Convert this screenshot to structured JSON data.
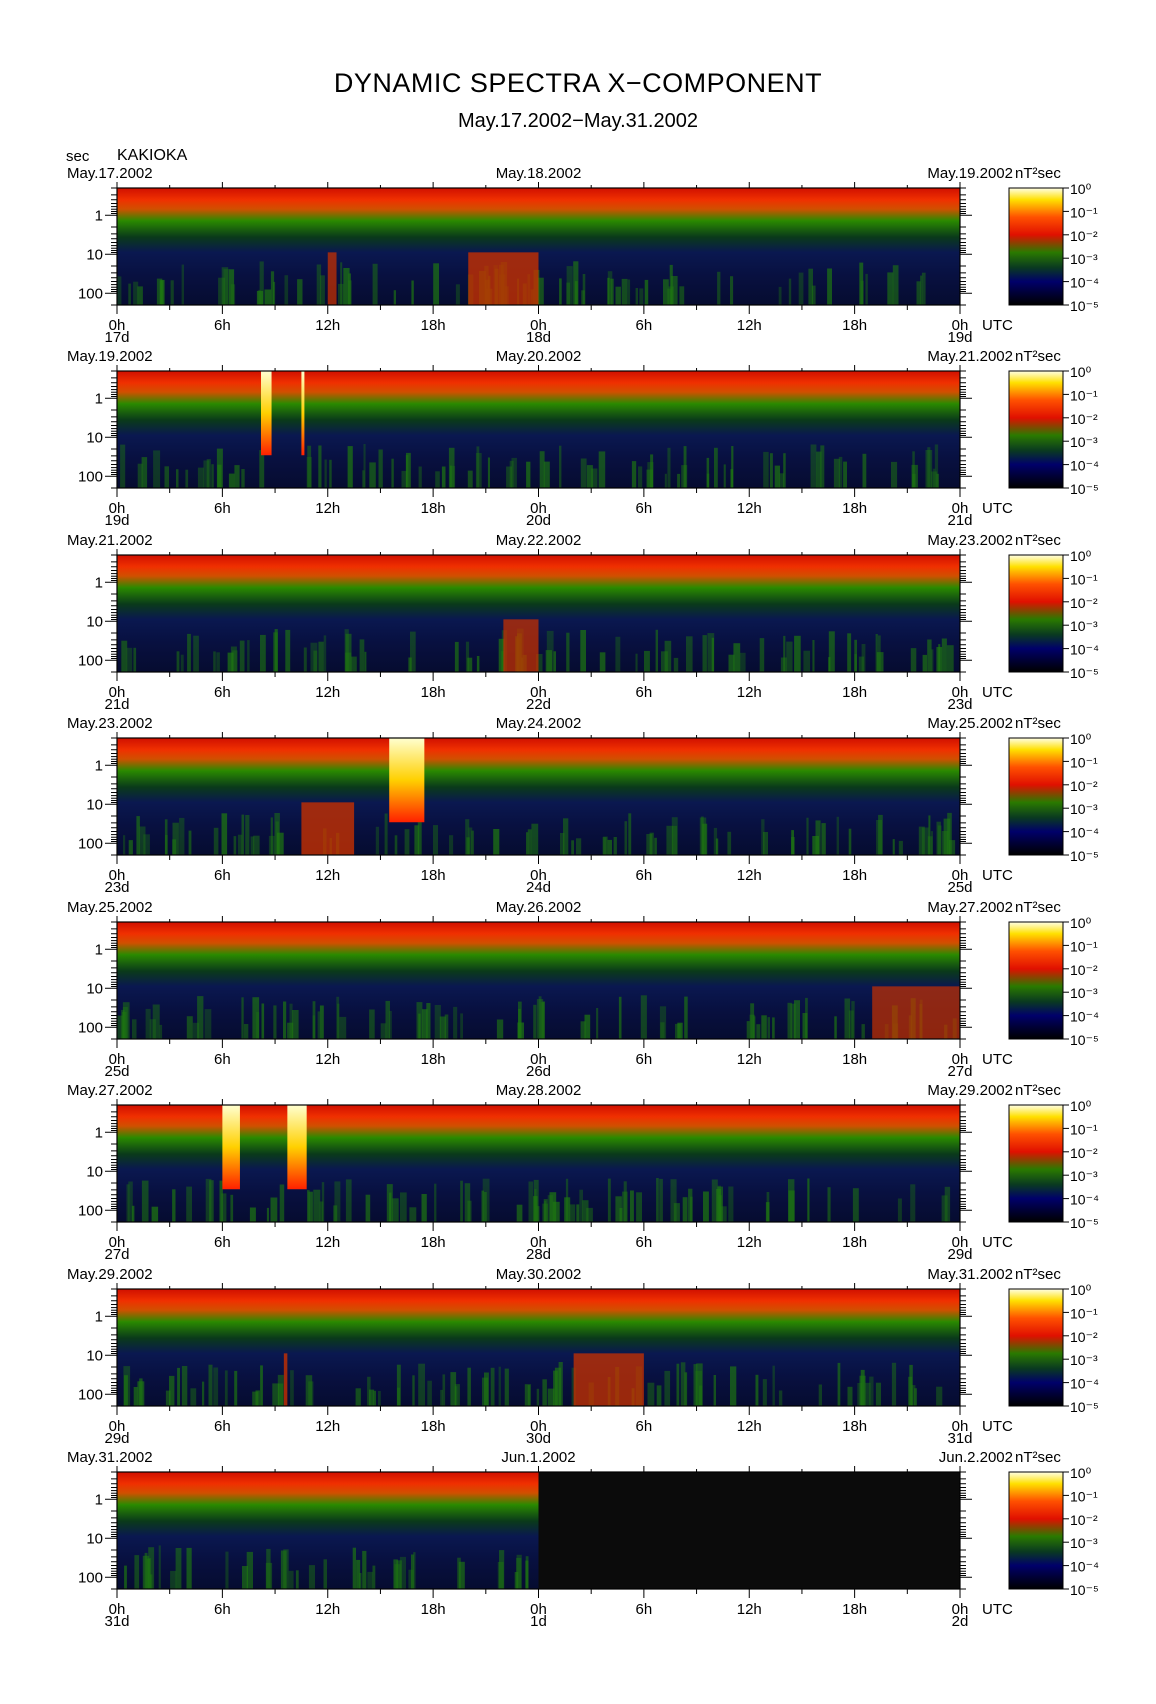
{
  "page": {
    "title": "DYNAMIC SPECTRA X−COMPONENT",
    "subtitle": "May.17.2002−May.31.2002",
    "unit_label": "sec",
    "station": "KAKIOKA"
  },
  "chart_data": {
    "type": "heatmap",
    "title": "DYNAMIC SPECTRA X−COMPONENT",
    "subtitle": "May.17.2002−May.31.2002",
    "station": "KAKIOKA",
    "ylabel": "sec",
    "yscale": "log",
    "ylim": [
      0.2,
      200
    ],
    "y_ticks": [
      "1",
      "10",
      "100"
    ],
    "x_ticks": [
      "0h",
      "6h",
      "12h",
      "18h",
      "0h",
      "6h",
      "12h",
      "18h",
      "0h"
    ],
    "x_unit": "UTC",
    "colorbar": {
      "unit_label": "nT²sec",
      "scale": "log",
      "ticks": [
        "10⁰",
        "10⁻¹",
        "10⁻²",
        "10⁻³",
        "10⁻⁴",
        "10⁻⁵"
      ],
      "colors": [
        "#ffffff",
        "#ffe000",
        "#ff3000",
        "#e01000",
        "#008000",
        "#000070",
        "#000000"
      ]
    },
    "panels": [
      {
        "date_left": "May.17.2002",
        "date_mid": "May.18.2002",
        "date_right": "May.19.2002",
        "day_labels": [
          "17d",
          "18d",
          "19d"
        ],
        "events": [
          {
            "start_h": 12,
            "end_h": 12.5,
            "level": 0.6
          },
          {
            "start_h": 20,
            "end_h": 24,
            "level": 0.8
          }
        ]
      },
      {
        "date_left": "May.19.2002",
        "date_mid": "May.20.2002",
        "date_right": "May.21.2002",
        "day_labels": [
          "19d",
          "20d",
          "21d"
        ],
        "events": [
          {
            "start_h": 8.2,
            "end_h": 8.8,
            "level": 1.0
          },
          {
            "start_h": 10.5,
            "end_h": 10.6,
            "level": 0.9
          }
        ]
      },
      {
        "date_left": "May.21.2002",
        "date_mid": "May.22.2002",
        "date_right": "May.23.2002",
        "day_labels": [
          "21d",
          "22d",
          "23d"
        ],
        "events": [
          {
            "start_h": 22,
            "end_h": 24,
            "level": 0.6
          }
        ]
      },
      {
        "date_left": "May.23.2002",
        "date_mid": "May.24.2002",
        "date_right": "May.25.2002",
        "day_labels": [
          "23d",
          "24d",
          "25d"
        ],
        "events": [
          {
            "start_h": 10.5,
            "end_h": 13.5,
            "level": 0.8
          },
          {
            "start_h": 15.5,
            "end_h": 17.5,
            "level": 0.9
          }
        ]
      },
      {
        "date_left": "May.25.2002",
        "date_mid": "May.26.2002",
        "date_right": "May.27.2002",
        "day_labels": [
          "25d",
          "26d",
          "27d"
        ],
        "events": [
          {
            "start_h": 43,
            "end_h": 48,
            "level": 0.5
          }
        ]
      },
      {
        "date_left": "May.27.2002",
        "date_mid": "May.28.2002",
        "date_right": "May.29.2002",
        "day_labels": [
          "27d",
          "28d",
          "29d"
        ],
        "events": [
          {
            "start_h": 6,
            "end_h": 7,
            "level": 1.0
          },
          {
            "start_h": 9.7,
            "end_h": 10.8,
            "level": 1.0
          }
        ]
      },
      {
        "date_left": "May.29.2002",
        "date_mid": "May.30.2002",
        "date_right": "May.31.2002",
        "day_labels": [
          "29d",
          "30d",
          "31d"
        ],
        "events": [
          {
            "start_h": 9.5,
            "end_h": 9.7,
            "level": 0.8
          },
          {
            "start_h": 26,
            "end_h": 30,
            "level": 0.7
          }
        ]
      },
      {
        "date_left": "May.31.2002",
        "date_mid": "Jun.1.2002",
        "date_right": "Jun.2.2002",
        "day_labels": [
          "31d",
          "1d",
          "2d"
        ],
        "data_end_h": 24,
        "events": []
      }
    ]
  }
}
